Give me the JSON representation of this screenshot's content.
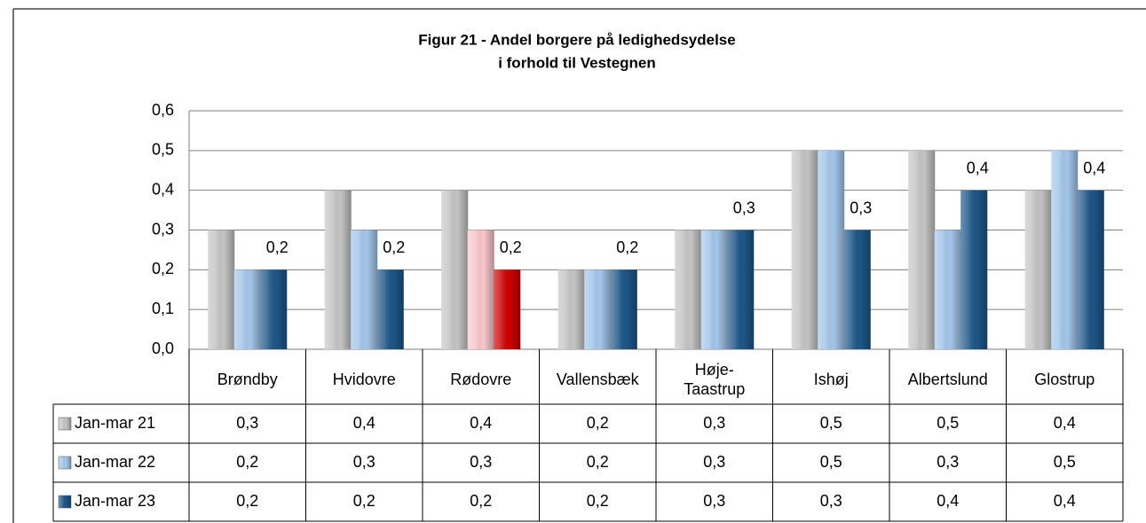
{
  "chart_data": {
    "type": "bar",
    "title": "Figur 21 - Andel borgere på ledighedsydelse",
    "subtitle": "i forhold til Vestegnen",
    "categories": [
      "Brøndby",
      "Hvidovre",
      "Rødovre",
      "Vallensbæk",
      "Høje-\nTaastrup",
      "Ishøj",
      "Albertslund",
      "Glostrup"
    ],
    "series": [
      {
        "name": "Jan-mar 21",
        "colors": [
          "#c4c4c4",
          "#c4c4c4",
          "#c4c4c4",
          "#c4c4c4",
          "#c4c4c4",
          "#c4c4c4",
          "#c4c4c4",
          "#c4c4c4"
        ],
        "values": [
          0.3,
          0.4,
          0.4,
          0.2,
          0.3,
          0.5,
          0.5,
          0.4
        ],
        "value_labels": [
          "0,3",
          "0,4",
          "0,4",
          "0,2",
          "0,3",
          "0,5",
          "0,5",
          "0,4"
        ],
        "data_labels": false
      },
      {
        "name": "Jan-mar 22",
        "colors": [
          "#a3c6ea",
          "#a3c6ea",
          "#f8c6cb",
          "#a3c6ea",
          "#a3c6ea",
          "#a3c6ea",
          "#a3c6ea",
          "#a3c6ea"
        ],
        "values": [
          0.2,
          0.3,
          0.3,
          0.2,
          0.3,
          0.5,
          0.3,
          0.5
        ],
        "value_labels": [
          "0,2",
          "0,3",
          "0,3",
          "0,2",
          "0,3",
          "0,5",
          "0,3",
          "0,5"
        ],
        "data_labels": false
      },
      {
        "name": "Jan-mar 23",
        "colors": [
          "#1d5687",
          "#1d5687",
          "#cc0000",
          "#1d5687",
          "#1d5687",
          "#1d5687",
          "#1d5687",
          "#1d5687"
        ],
        "values": [
          0.2,
          0.2,
          0.2,
          0.2,
          0.3,
          0.3,
          0.4,
          0.4
        ],
        "value_labels": [
          "0,2",
          "0,2",
          "0,2",
          "0,2",
          "0,3",
          "0,3",
          "0,4",
          "0,4"
        ],
        "data_labels": true
      }
    ],
    "ylim": [
      0,
      0.6
    ],
    "yticks": [
      {
        "value": 0,
        "label": "0,0"
      },
      {
        "value": 0.1,
        "label": "0,1"
      },
      {
        "value": 0.2,
        "label": "0,2"
      },
      {
        "value": 0.3,
        "label": "0,3"
      },
      {
        "value": 0.4,
        "label": "0,4"
      },
      {
        "value": 0.5,
        "label": "0,5"
      },
      {
        "value": 0.6,
        "label": "0,6"
      }
    ],
    "grid": true
  }
}
